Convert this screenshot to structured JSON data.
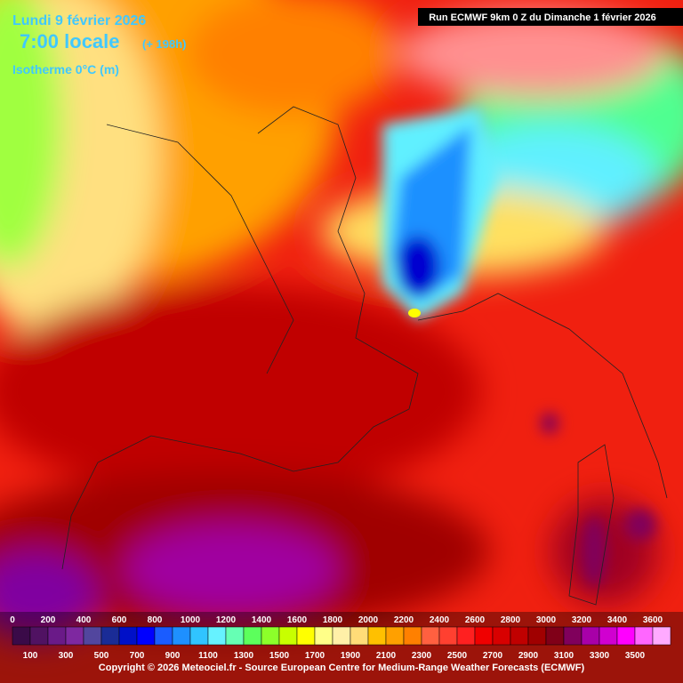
{
  "header": {
    "date": "Lundi 9 février 2026",
    "time": "7:00 locale",
    "offset": "(+ 198h)",
    "field": "Isotherme 0°C (m)",
    "run": "Run ECMWF 9km 0 Z du Dimanche 1 février 2026"
  },
  "legend": {
    "top_labels": [
      "0",
      "200",
      "400",
      "600",
      "800",
      "1000",
      "1200",
      "1400",
      "1600",
      "1800",
      "2000",
      "2200",
      "2400",
      "2600",
      "2800",
      "3000",
      "3200",
      "3400",
      "3600"
    ],
    "bottom_labels": [
      "100",
      "300",
      "500",
      "700",
      "900",
      "1100",
      "1300",
      "1500",
      "1700",
      "1900",
      "2100",
      "2300",
      "2500",
      "2700",
      "2900",
      "3100",
      "3300",
      "3500"
    ],
    "colors": [
      "#3a0a48",
      "#501262",
      "#6a1a88",
      "#7e28a0",
      "#52469e",
      "#1a2c96",
      "#0010c8",
      "#0000ff",
      "#1a5cff",
      "#1e90ff",
      "#30c4ff",
      "#66f2ff",
      "#66ffb4",
      "#5cff5c",
      "#8cff2a",
      "#c8ff00",
      "#ffff00",
      "#ffff88",
      "#fff0a8",
      "#ffdc78",
      "#ffc000",
      "#ffa000",
      "#ff8000",
      "#ff6040",
      "#ff4030",
      "#ff2020",
      "#f00000",
      "#d80000",
      "#c00000",
      "#a00000",
      "#800018",
      "#80005c",
      "#a800a8",
      "#d000d0",
      "#ff00ff",
      "#ff66ff",
      "#ffaaff"
    ]
  },
  "footer": {
    "copyright": "Copyright © 2026 Meteociel.fr - Source European Centre for Medium-Range Weather Forecasts (ECMWF)"
  }
}
